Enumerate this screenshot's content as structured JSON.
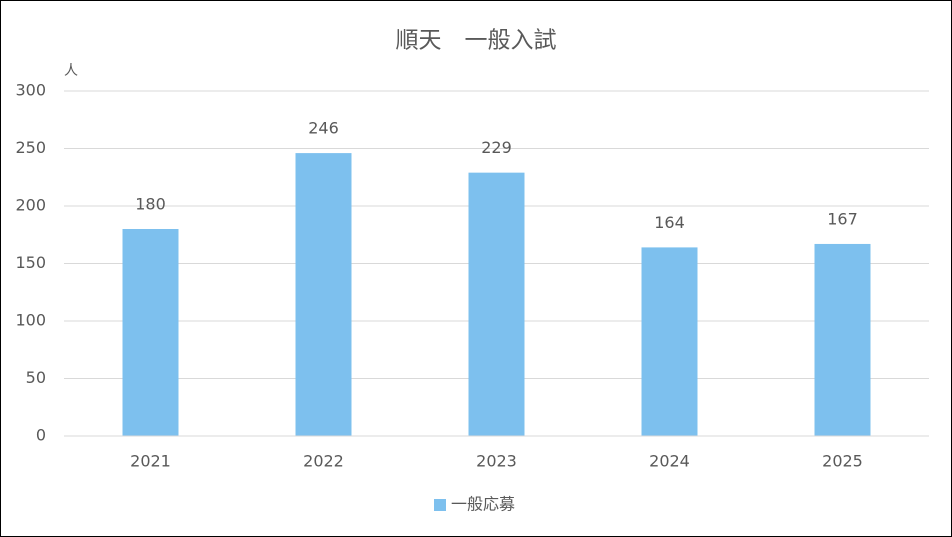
{
  "chart_data": {
    "type": "bar",
    "title": "順天　一般入試",
    "y_label": "人",
    "categories": [
      "2021",
      "2022",
      "2023",
      "2024",
      "2025"
    ],
    "series": [
      {
        "name": "一般応募",
        "color": "#7dc0ee",
        "values": [
          180,
          246,
          229,
          164,
          167
        ]
      }
    ],
    "ylim": [
      0,
      300
    ],
    "yticks": [
      0,
      50,
      100,
      150,
      200,
      250,
      300
    ],
    "grid": true,
    "legend": "bottom",
    "data_labels": true
  }
}
